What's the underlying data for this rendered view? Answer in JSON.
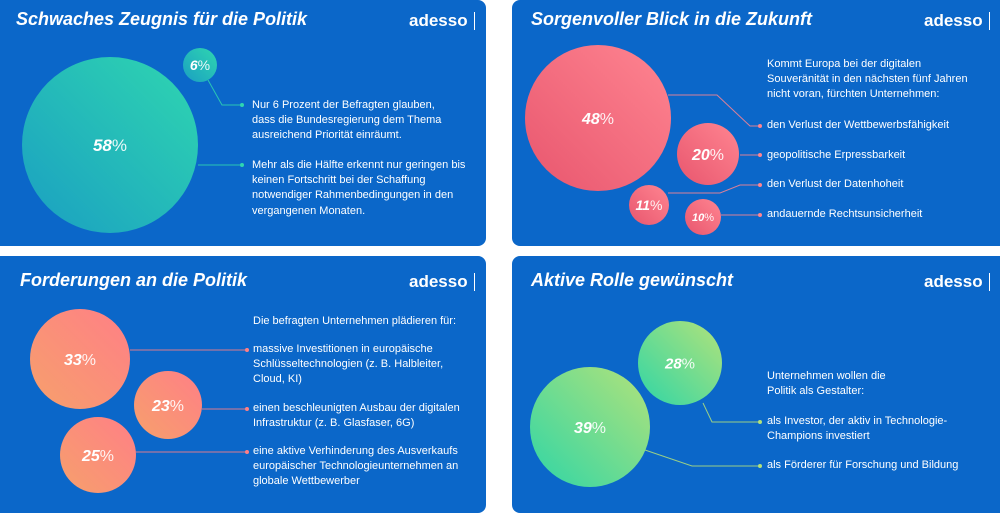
{
  "brand": "adesso",
  "colors": {
    "panel_bg": "#0b67c9"
  },
  "panels": [
    {
      "title": "Schwaches Zeugnis für die Politik",
      "intro": "",
      "items": [
        "Nur 6 Prozent der Befragten glauben, dass die Bundesregierung dem Thema ausreichend Priorität einräumt.",
        "Mehr als die Hälfte erkennt nur geringen bis keinen Fortschritt bei der Schaffung notwendiger Rahmenbedingungen in den vergangenen Monaten."
      ]
    },
    {
      "title": "Sorgenvoller Blick in die Zukunft",
      "intro": "Kommt Europa bei der digitalen Souveränität in den nächsten fünf Jahren nicht voran, fürchten Unternehmen:",
      "items": [
        "den Verlust der Wettbewerbsfähigkeit",
        "geopolitische Erpressbarkeit",
        "den Verlust der Datenhoheit",
        "andauernde Rechtsunsicherheit"
      ]
    },
    {
      "title": "Forderungen an die Politik",
      "intro": "Die befragten Unternehmen plädieren für:",
      "items": [
        "massive Investitionen in europäische Schlüsseltechnologien (z. B. Halbleiter, Cloud, KI)",
        "einen beschleunigten Ausbau der digitalen Infrastruktur (z. B. Glasfaser, 6G)",
        "eine aktive Verhinderung des Ausverkaufs europäischer Technologieunternehmen an globale Wettbewerber"
      ]
    },
    {
      "title": "Aktive Rolle gewünscht",
      "intro": "Unternehmen wollen die Politik als Gestalter:",
      "items": [
        "als Investor, der aktiv in Technologie-Champions investiert",
        "als Förderer für Forschung und Bildung"
      ]
    }
  ],
  "chart_data": [
    {
      "type": "bubble",
      "title": "Schwaches Zeugnis für die Politik",
      "unit": "%",
      "values": [
        6,
        58
      ],
      "colors": [
        "#2fd6b0",
        "#1a9fc2"
      ]
    },
    {
      "type": "bubble",
      "title": "Sorgenvoller Blick in die Zukunft",
      "unit": "%",
      "values": [
        48,
        20,
        11,
        10
      ],
      "colors": [
        "#ff8591",
        "#e8566e"
      ]
    },
    {
      "type": "bubble",
      "title": "Forderungen an die Politik",
      "unit": "%",
      "values": [
        33,
        23,
        25
      ],
      "colors": [
        "#ff7f86",
        "#f6a06c"
      ]
    },
    {
      "type": "bubble",
      "title": "Aktive Rolle gewünscht",
      "unit": "%",
      "values": [
        28,
        39
      ],
      "colors": [
        "#b3e27a",
        "#2fd6a6"
      ]
    }
  ]
}
